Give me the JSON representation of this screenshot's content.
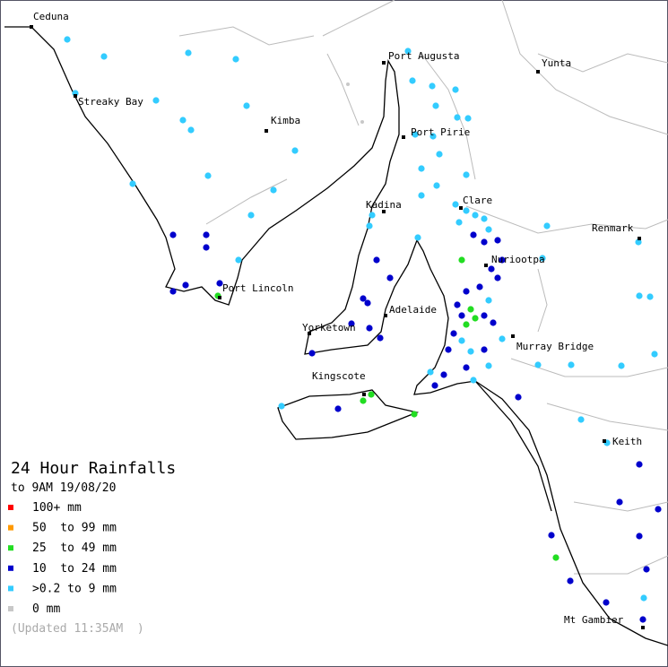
{
  "map": {
    "places": [
      "Ceduna",
      "Streaky Bay",
      "Kimba",
      "Port Augusta",
      "Yunta",
      "Port Pirie",
      "Clare",
      "Kadina",
      "Renmark",
      "Nuriootpa",
      "Port Lincoln",
      "Adelaide",
      "Yorketown",
      "Murray Bridge",
      "Kingscote",
      "Keith",
      "Mt Gambier"
    ],
    "legend": {
      "title": "24 Hour Rainfalls",
      "subtitle": "to 9AM 19/08/20",
      "items": [
        {
          "label": "100+ mm",
          "color": "#ff0000"
        },
        {
          "label": "50  to 99 mm",
          "color": "#ff9900"
        },
        {
          "label": "25  to 49 mm",
          "color": "#22dd22"
        },
        {
          "label": "10  to 24 mm",
          "color": "#0000cc"
        },
        {
          "label": ">0.2 to 9 mm",
          "color": "#33ccff"
        },
        {
          "label": "0 mm",
          "color": "#c8c8c8"
        }
      ],
      "updated": "(Updated 11:35AM  )"
    }
  }
}
